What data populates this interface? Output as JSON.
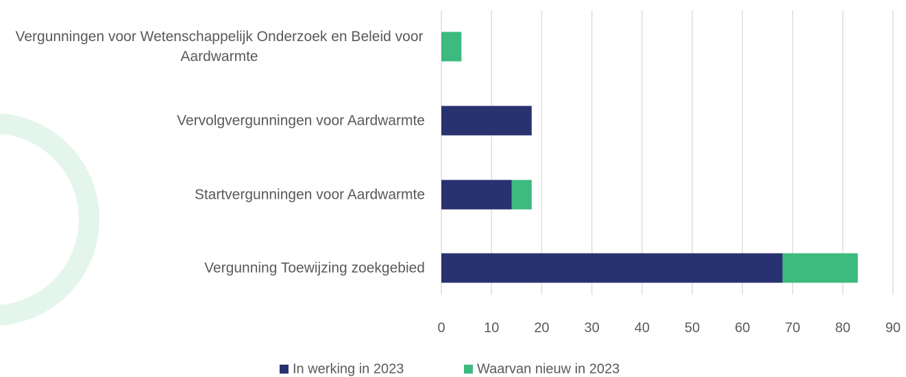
{
  "chart_data": {
    "type": "stacked-barh",
    "categories": [
      "Vergunningen voor Wetenschappelijk Onderzoek en Beleid voor Aardwarmte",
      "Vervolgvergunningen voor Aardwarmte",
      "Startvergunningen voor Aardwarmte",
      "Vergunning Toewijzing zoekgebied"
    ],
    "series": [
      {
        "name": "In werking in 2023",
        "color": "#283270",
        "values": [
          0,
          18,
          14,
          68
        ]
      },
      {
        "name": "Waarvan nieuw in 2023",
        "color": "#3dba7f",
        "values": [
          4,
          0,
          4,
          15
        ]
      }
    ],
    "xlim": [
      0,
      90
    ],
    "xticks": [
      0,
      10,
      20,
      30,
      40,
      50,
      60,
      70,
      80,
      90
    ],
    "grid": true,
    "legend": "bottom"
  }
}
